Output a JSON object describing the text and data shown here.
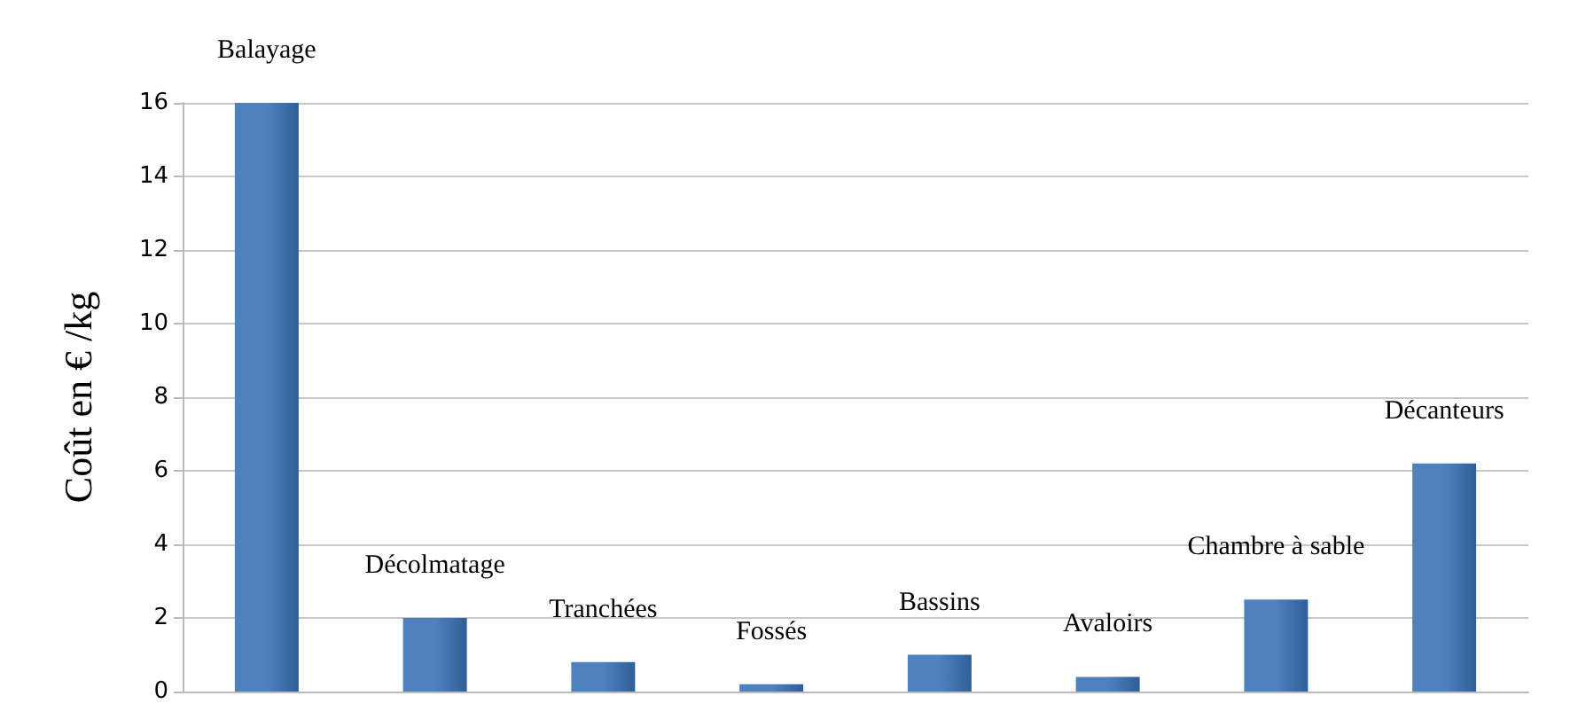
{
  "chart_data": {
    "type": "bar",
    "ylabel": "Coût en € /kg",
    "categories": [
      "Balayage",
      "Décolmatage",
      "Tranchées",
      "Fossés",
      "Bassins",
      "Avaloirs",
      "Chambre à sable",
      "Décanteurs"
    ],
    "values": [
      16,
      2,
      0.8,
      0.2,
      1,
      0.4,
      2.5,
      6.2
    ],
    "color": "#4f81bd",
    "ylim": [
      0,
      16
    ],
    "yticks": [
      0,
      2,
      4,
      6,
      8,
      10,
      12,
      14,
      16
    ],
    "grid": "y",
    "tick_labels": "y"
  }
}
